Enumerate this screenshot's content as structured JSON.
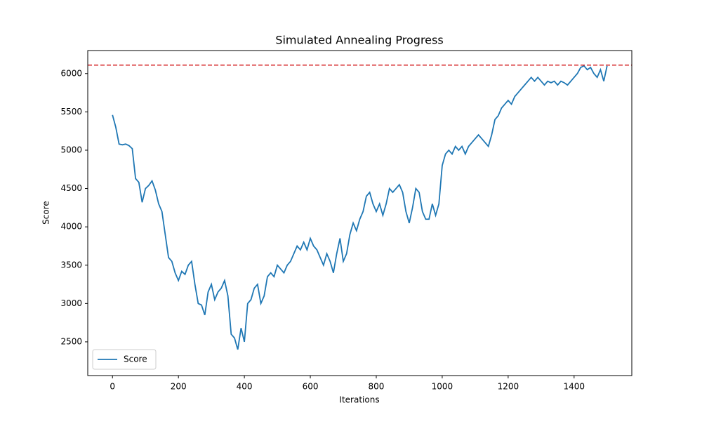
{
  "chart_data": {
    "type": "line",
    "title": "Simulated Annealing Progress",
    "x_label": "Iterations",
    "y_label": "Score",
    "x": [
      0,
      10,
      20,
      30,
      40,
      50,
      60,
      70,
      80,
      90,
      100,
      110,
      120,
      130,
      140,
      150,
      160,
      170,
      180,
      190,
      200,
      210,
      220,
      230,
      240,
      250,
      260,
      270,
      280,
      290,
      300,
      310,
      320,
      330,
      340,
      350,
      360,
      370,
      380,
      390,
      400,
      410,
      420,
      430,
      440,
      450,
      460,
      470,
      480,
      490,
      500,
      510,
      520,
      530,
      540,
      550,
      560,
      570,
      580,
      590,
      600,
      610,
      620,
      630,
      640,
      650,
      660,
      670,
      680,
      690,
      700,
      710,
      720,
      730,
      740,
      750,
      760,
      770,
      780,
      790,
      800,
      810,
      820,
      830,
      840,
      850,
      860,
      870,
      880,
      890,
      900,
      910,
      920,
      930,
      940,
      950,
      960,
      970,
      980,
      990,
      1000,
      1010,
      1020,
      1030,
      1040,
      1050,
      1060,
      1070,
      1080,
      1090,
      1100,
      1110,
      1120,
      1130,
      1140,
      1150,
      1160,
      1170,
      1180,
      1190,
      1200,
      1210,
      1220,
      1230,
      1240,
      1250,
      1260,
      1270,
      1280,
      1290,
      1300,
      1310,
      1320,
      1330,
      1340,
      1350,
      1360,
      1370,
      1380,
      1390,
      1400,
      1410,
      1420,
      1430,
      1440,
      1450,
      1460,
      1470,
      1480,
      1490,
      1500
    ],
    "series": [
      {
        "name": "Score",
        "color": "#1f77b4",
        "values": [
          5460,
          5300,
          5080,
          5070,
          5080,
          5060,
          5020,
          4630,
          4580,
          4320,
          4500,
          4540,
          4600,
          4480,
          4300,
          4200,
          3900,
          3600,
          3550,
          3400,
          3300,
          3420,
          3380,
          3500,
          3550,
          3250,
          3000,
          2980,
          2850,
          3150,
          3250,
          3050,
          3150,
          3200,
          3300,
          3100,
          2600,
          2550,
          2400,
          2680,
          2500,
          3000,
          3050,
          3200,
          3250,
          3000,
          3100,
          3350,
          3400,
          3350,
          3500,
          3450,
          3400,
          3500,
          3550,
          3650,
          3750,
          3700,
          3800,
          3700,
          3850,
          3750,
          3700,
          3600,
          3500,
          3650,
          3550,
          3400,
          3650,
          3850,
          3550,
          3650,
          3900,
          4050,
          3950,
          4100,
          4200,
          4400,
          4450,
          4300,
          4200,
          4300,
          4150,
          4300,
          4500,
          4450,
          4500,
          4550,
          4450,
          4200,
          4050,
          4250,
          4500,
          4450,
          4200,
          4100,
          4100,
          4300,
          4150,
          4300,
          4800,
          4950,
          5000,
          4950,
          5050,
          5000,
          5050,
          4950,
          5050,
          5100,
          5150,
          5200,
          5150,
          5100,
          5050,
          5200,
          5400,
          5450,
          5550,
          5600,
          5650,
          5600,
          5700,
          5750,
          5800,
          5850,
          5900,
          5950,
          5900,
          5950,
          5900,
          5850,
          5900,
          5880,
          5900,
          5850,
          5900,
          5880,
          5850,
          5900,
          5950,
          6000,
          6080,
          6100,
          6050,
          6080,
          6000,
          5950,
          6050,
          5900,
          6100
        ]
      }
    ],
    "reference_line": {
      "value": 6110,
      "color": "#d62728"
    },
    "xlim": [
      -75,
      1575
    ],
    "ylim": [
      2060,
      6300
    ],
    "xticks": [
      0,
      200,
      400,
      600,
      800,
      1000,
      1200,
      1400
    ],
    "yticks": [
      2500,
      3000,
      3500,
      4000,
      4500,
      5000,
      5500,
      6000
    ],
    "legend": "lower left"
  }
}
